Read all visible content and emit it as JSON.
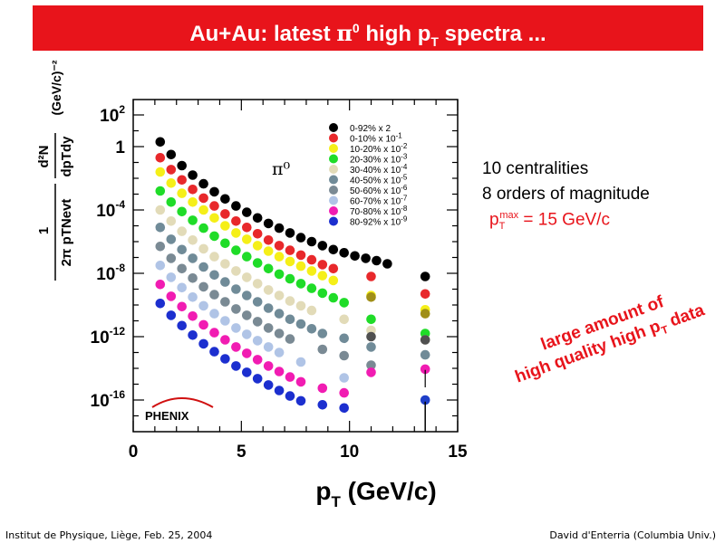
{
  "header": {
    "title_prefix": "Au+Au: latest ",
    "title_pi": "π",
    "title_pi_sup": "0",
    "title_mid": " high p",
    "title_sub": "T",
    "title_suffix": " spectra ..."
  },
  "notes": {
    "line1": "10 centralities",
    "line2": "8 orders of magnitude",
    "pt_prefix": "p",
    "pt_sub": "T",
    "pt_sup": "max",
    "pt_suffix": " = 15 GeV/c",
    "quality_line1": "large amount of",
    "quality_line2_prefix": "high quality high p",
    "quality_line2_sub": "T",
    "quality_line2_suffix": " data"
  },
  "footer": {
    "left": "Institut de Physique, Liège, Feb. 25, 2004",
    "right": "David d'Enterria (Columbia Univ.)"
  },
  "colors": {
    "title_bg": "#e8141b",
    "title_text": "#ffffff",
    "accent_red": "#e8141b"
  },
  "chart_data": {
    "type": "scatter",
    "xlabel_main": "p",
    "xlabel_sub": "T",
    "xlabel_unit": " (GeV/c)",
    "ylabel_lhs": "1 / (2π pT Nevt)",
    "ylabel_rhs": "d²N / dpTdy",
    "ylabel_unit": "(GeV/c)⁻²",
    "particle_label": "π⁰",
    "logo_text": "PHENIX",
    "xlim": [
      0,
      15
    ],
    "ylim_log10": [
      -17.5,
      3
    ],
    "x_ticks": [
      {
        "value": 0,
        "label": "0"
      },
      {
        "value": 5,
        "label": "5"
      },
      {
        "value": 10,
        "label": "10"
      },
      {
        "value": 15,
        "label": "15"
      }
    ],
    "y_ticks": [
      {
        "log": 2,
        "base": "10",
        "exp": "2"
      },
      {
        "log": 0,
        "base": "1",
        "exp": ""
      },
      {
        "log": -4,
        "base": "10",
        "exp": "-4"
      },
      {
        "log": -8,
        "base": "10",
        "exp": "-8"
      },
      {
        "log": -12,
        "base": "10",
        "exp": "-12"
      },
      {
        "log": -16,
        "base": "10",
        "exp": "-16"
      }
    ],
    "y_scale": "log",
    "grid": false,
    "legend_position": "top-right",
    "series": [
      {
        "name": "0-92% x 2",
        "label": "0-92% x 2",
        "color": "#000000",
        "x": [
          1.25,
          1.75,
          2.25,
          2.75,
          3.25,
          3.75,
          4.25,
          4.75,
          5.25,
          5.75,
          6.25,
          6.75,
          7.25,
          7.75,
          8.25,
          8.75,
          9.25,
          9.75,
          10.25,
          10.75,
          11.25,
          11.75,
          13.5
        ],
        "log10y": [
          0.3,
          -0.5,
          -1.2,
          -1.8,
          -2.35,
          -2.85,
          -3.3,
          -3.75,
          -4.15,
          -4.5,
          -4.85,
          -5.15,
          -5.45,
          -5.75,
          -6.0,
          -6.25,
          -6.5,
          -6.7,
          -6.9,
          -7.05,
          -7.2,
          -7.4,
          -8.2
        ]
      },
      {
        "name": "0-10% x 10^-1",
        "label": "0-10% x 10",
        "label_exp": "-1",
        "color": "#e8282b",
        "x": [
          1.25,
          1.75,
          2.25,
          2.75,
          3.25,
          3.75,
          4.25,
          4.75,
          5.25,
          5.75,
          6.25,
          6.75,
          7.25,
          7.75,
          8.25,
          8.75,
          9.25,
          11.0,
          13.5
        ],
        "log10y": [
          -0.7,
          -1.45,
          -2.1,
          -2.7,
          -3.25,
          -3.75,
          -4.25,
          -4.7,
          -5.1,
          -5.5,
          -5.9,
          -6.25,
          -6.55,
          -6.85,
          -7.15,
          -7.45,
          -7.7,
          -8.2,
          -9.3
        ]
      },
      {
        "name": "10-20% x 10^-2",
        "label": "10-20% x 10",
        "label_exp": "-2",
        "color": "#f5ef18",
        "x": [
          1.25,
          1.75,
          2.25,
          2.75,
          3.25,
          3.75,
          4.25,
          4.75,
          5.25,
          5.75,
          6.25,
          6.75,
          7.25,
          7.75,
          8.25,
          8.75,
          9.25,
          11.0,
          13.5
        ],
        "log10y": [
          -1.6,
          -2.3,
          -2.95,
          -3.5,
          -4.0,
          -4.5,
          -5.0,
          -5.45,
          -5.85,
          -6.25,
          -6.6,
          -6.95,
          -7.25,
          -7.55,
          -7.85,
          -8.15,
          -8.45,
          -9.4,
          -10.3
        ]
      },
      {
        "name": "20-30% x 10^-3",
        "label": "20-30% x 10",
        "label_exp": "-3",
        "color": "#1fdc28",
        "x": [
          1.25,
          1.75,
          2.25,
          2.75,
          3.25,
          3.75,
          4.25,
          4.75,
          5.25,
          5.75,
          6.25,
          6.75,
          7.25,
          7.75,
          8.25,
          8.75,
          9.25,
          9.75,
          11.0,
          13.5
        ],
        "log10y": [
          -2.8,
          -3.5,
          -4.1,
          -4.65,
          -5.15,
          -5.65,
          -6.1,
          -6.55,
          -6.95,
          -7.35,
          -7.7,
          -8.05,
          -8.35,
          -8.65,
          -8.95,
          -9.25,
          -9.55,
          -9.85,
          -10.9,
          -11.8
        ]
      },
      {
        "name": "30-40% x 10^-4",
        "label": "30-40% x 10",
        "label_exp": "-4",
        "color": "#e2dbb8",
        "x": [
          1.25,
          1.75,
          2.25,
          2.75,
          3.25,
          3.75,
          4.25,
          4.75,
          5.25,
          5.75,
          6.25,
          6.75,
          7.25,
          7.75,
          8.25,
          9.75,
          11.0,
          13.5
        ],
        "log10y": [
          -4.0,
          -4.7,
          -5.35,
          -5.9,
          -6.45,
          -6.95,
          -7.4,
          -7.85,
          -8.25,
          -8.65,
          -9.05,
          -9.4,
          -9.75,
          -10.05,
          -10.35,
          -10.9,
          -11.6,
          -12.2
        ]
      },
      {
        "name": "40-50% x 10^-5",
        "label": "40-50% x 10",
        "label_exp": "-5",
        "color": "#708b98",
        "x": [
          1.25,
          1.75,
          2.25,
          2.75,
          3.25,
          3.75,
          4.25,
          4.75,
          5.25,
          5.75,
          6.25,
          6.75,
          7.25,
          7.75,
          8.25,
          8.75,
          9.75,
          11.0,
          13.5
        ],
        "log10y": [
          -5.1,
          -5.85,
          -6.5,
          -7.05,
          -7.6,
          -8.1,
          -8.55,
          -9.0,
          -9.4,
          -9.8,
          -10.2,
          -10.55,
          -10.9,
          -11.2,
          -11.5,
          -11.8,
          -12.1,
          -12.65,
          -13.15
        ]
      },
      {
        "name": "50-60% x 10^-6",
        "label": "50-60% x 10",
        "label_exp": "-6",
        "color": "#7a8a94",
        "x": [
          1.25,
          1.75,
          2.25,
          2.75,
          3.25,
          3.75,
          4.25,
          4.75,
          5.25,
          5.75,
          6.25,
          6.75,
          7.25,
          8.75,
          9.75,
          11.0
        ],
        "log10y": [
          -6.3,
          -7.05,
          -7.7,
          -8.3,
          -8.85,
          -9.35,
          -9.8,
          -10.25,
          -10.65,
          -11.05,
          -11.45,
          -11.8,
          -12.15,
          -12.8,
          -13.2,
          -13.8
        ]
      },
      {
        "name": "60-70% x 10^-7",
        "label": "60-70% x 10",
        "label_exp": "-7",
        "color": "#b0c4e6",
        "x": [
          1.25,
          1.75,
          2.25,
          2.75,
          3.25,
          3.75,
          4.25,
          4.75,
          5.25,
          5.75,
          6.25,
          6.75,
          7.75,
          9.75
        ],
        "log10y": [
          -7.5,
          -8.25,
          -8.9,
          -9.5,
          -10.05,
          -10.55,
          -11.0,
          -11.45,
          -11.85,
          -12.25,
          -12.65,
          -13.0,
          -13.6,
          -14.6
        ]
      },
      {
        "name": "70-80% x 10^-8",
        "label": "70-80% x 10",
        "label_exp": "-8",
        "color": "#f11cb2",
        "x": [
          1.25,
          1.75,
          2.25,
          2.75,
          3.25,
          3.75,
          4.25,
          4.75,
          5.25,
          5.75,
          6.25,
          6.75,
          7.25,
          7.75,
          8.75,
          9.75,
          11.0,
          13.5
        ],
        "log10y": [
          -8.7,
          -9.45,
          -10.1,
          -10.7,
          -11.25,
          -11.75,
          -12.2,
          -12.65,
          -13.05,
          -13.45,
          -13.85,
          -14.2,
          -14.55,
          -14.85,
          -15.25,
          -15.55,
          -14.25,
          -14.05
        ]
      },
      {
        "name": "80-92% x 10^-9",
        "label": "80-92% x 10",
        "label_exp": "-9",
        "color": "#1c2fcf",
        "x": [
          1.25,
          1.75,
          2.25,
          2.75,
          3.25,
          3.75,
          4.25,
          4.75,
          5.25,
          5.75,
          6.25,
          6.75,
          7.25,
          7.75,
          8.75,
          9.75
        ],
        "log10y": [
          -9.9,
          -10.65,
          -11.3,
          -11.9,
          -12.45,
          -12.95,
          -13.4,
          -13.85,
          -14.25,
          -14.65,
          -15.05,
          -15.4,
          -15.75,
          -16.05,
          -16.3,
          -16.5
        ]
      },
      {
        "name": "extra-high-pT-1",
        "label": "",
        "color": "#1f3fc8",
        "x": [
          13.5
        ],
        "log10y": [
          -16.0
        ]
      },
      {
        "name": "extra-high-pT-2",
        "label": "",
        "color": "#a08f18",
        "x": [
          11.0,
          13.5
        ],
        "log10y": [
          -9.5,
          -10.55
        ]
      },
      {
        "name": "extra-high-pT-3",
        "label": "",
        "color": "#505050",
        "x": [
          11.0,
          13.5
        ],
        "log10y": [
          -12.0,
          -12.2
        ]
      }
    ]
  }
}
